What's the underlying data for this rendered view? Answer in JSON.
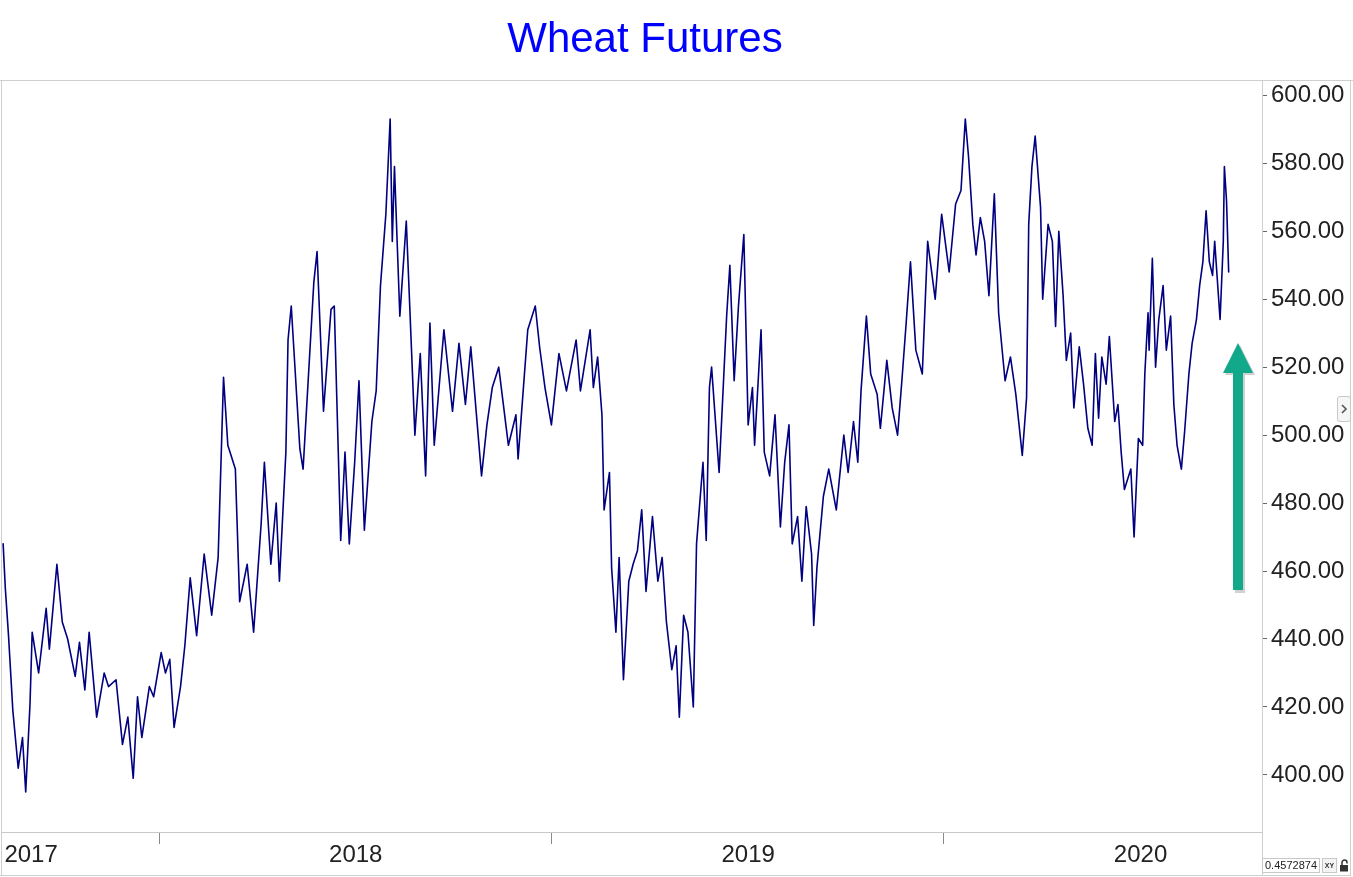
{
  "chart_data": {
    "type": "line",
    "title": "Wheat Futures",
    "annotations": [
      "0.4572874",
      "XY"
    ],
    "x": [
      "2017-08-09",
      "2017-08-11",
      "2017-08-14",
      "2017-08-18",
      "2017-08-23",
      "2017-08-27",
      "2017-08-30",
      "2017-09-03",
      "2017-09-05",
      "2017-09-11",
      "2017-09-18",
      "2017-09-21",
      "2017-09-28",
      "2017-10-03",
      "2017-10-08",
      "2017-10-15",
      "2017-10-19",
      "2017-10-24",
      "2017-10-28",
      "2017-11-04",
      "2017-11-11",
      "2017-11-15",
      "2017-11-22",
      "2017-11-28",
      "2017-12-03",
      "2017-12-08",
      "2017-12-12",
      "2017-12-16",
      "2017-12-23",
      "2017-12-27",
      "2018-01-03",
      "2018-01-07",
      "2018-01-11",
      "2018-01-15",
      "2018-01-21",
      "2018-01-25",
      "2018-01-30",
      "2018-02-05",
      "2018-02-12",
      "2018-02-19",
      "2018-02-25",
      "2018-03-02",
      "2018-03-06",
      "2018-03-13",
      "2018-03-17",
      "2018-03-24",
      "2018-03-30",
      "2018-04-06",
      "2018-04-09",
      "2018-04-15",
      "2018-04-20",
      "2018-04-23",
      "2018-04-29",
      "2018-05-01",
      "2018-05-04",
      "2018-05-12",
      "2018-05-15",
      "2018-05-25",
      "2018-05-28",
      "2018-06-03",
      "2018-06-10",
      "2018-06-13",
      "2018-06-19",
      "2018-06-23",
      "2018-06-27",
      "2018-07-02",
      "2018-07-06",
      "2018-07-11",
      "2018-07-18",
      "2018-07-22",
      "2018-07-26",
      "2018-07-31",
      "2018-08-04",
      "2018-08-06",
      "2018-08-08",
      "2018-08-13",
      "2018-08-19",
      "2018-08-24",
      "2018-08-27",
      "2018-09-01",
      "2018-09-06",
      "2018-09-10",
      "2018-09-14",
      "2018-09-23",
      "2018-10-01",
      "2018-10-07",
      "2018-10-13",
      "2018-10-18",
      "2018-10-28",
      "2018-11-02",
      "2018-11-07",
      "2018-11-13",
      "2018-11-22",
      "2018-11-29",
      "2018-12-01",
      "2018-12-10",
      "2018-12-17",
      "2018-12-21",
      "2018-12-26",
      "2019-01-01",
      "2019-01-08",
      "2019-01-15",
      "2019-01-24",
      "2019-01-28",
      "2019-02-06",
      "2019-02-09",
      "2019-02-13",
      "2019-02-17",
      "2019-02-19",
      "2019-02-24",
      "2019-02-26",
      "2019-03-02",
      "2019-03-05",
      "2019-03-09",
      "2019-03-14",
      "2019-03-18",
      "2019-03-22",
      "2019-03-26",
      "2019-03-30",
      "2019-04-05",
      "2019-04-10",
      "2019-04-14",
      "2019-04-18",
      "2019-04-23",
      "2019-04-27",
      "2019-04-30",
      "2019-05-04",
      "2019-05-08",
      "2019-05-13",
      "2019-05-16",
      "2019-05-22",
      "2019-05-25",
      "2019-05-28",
      "2019-05-30",
      "2019-06-06",
      "2019-06-13",
      "2019-06-16",
      "2019-06-20",
      "2019-06-24",
      "2019-06-29",
      "2019-07-03",
      "2019-07-07",
      "2019-07-09",
      "2019-07-15",
      "2019-07-18",
      "2019-07-23",
      "2019-07-28",
      "2019-08-02",
      "2019-08-06",
      "2019-08-10",
      "2019-08-13",
      "2019-08-18",
      "2019-08-22",
      "2019-08-26",
      "2019-08-31",
      "2019-09-02",
      "2019-09-05",
      "2019-09-11",
      "2019-09-16",
      "2019-09-23",
      "2019-09-30",
      "2019-10-04",
      "2019-10-09",
      "2019-10-13",
      "2019-10-16",
      "2019-10-21",
      "2019-10-25",
      "2019-10-31",
      "2019-11-03",
      "2019-11-09",
      "2019-11-14",
      "2019-11-19",
      "2019-11-23",
      "2019-11-27",
      "2019-12-01",
      "2019-12-06",
      "2019-12-12",
      "2019-12-17",
      "2019-12-24",
      "2019-12-30",
      "2020-01-06",
      "2020-01-12",
      "2020-01-17",
      "2020-01-21",
      "2020-01-24",
      "2020-01-28",
      "2020-01-31",
      "2020-02-04",
      "2020-02-08",
      "2020-02-12",
      "2020-02-17",
      "2020-02-21",
      "2020-02-27",
      "2020-03-03",
      "2020-03-08",
      "2020-03-14",
      "2020-03-18",
      "2020-03-20",
      "2020-03-23",
      "2020-03-26",
      "2020-03-31",
      "2020-04-02",
      "2020-04-07",
      "2020-04-11",
      "2020-04-14",
      "2020-04-17",
      "2020-04-21",
      "2020-04-24",
      "2020-04-28",
      "2020-05-01",
      "2020-05-06",
      "2020-05-10",
      "2020-05-14",
      "2020-05-18",
      "2020-05-21",
      "2020-05-24",
      "2020-05-27",
      "2020-05-31",
      "2020-06-03",
      "2020-06-08",
      "2020-06-11",
      "2020-06-14",
      "2020-06-17",
      "2020-06-23",
      "2020-06-26",
      "2020-06-30",
      "2020-07-04",
      "2020-07-06",
      "2020-07-09",
      "2020-07-10",
      "2020-07-13",
      "2020-07-16",
      "2020-07-19",
      "2020-07-23",
      "2020-07-26",
      "2020-07-30",
      "2020-08-02",
      "2020-08-05",
      "2020-08-09",
      "2020-08-12",
      "2020-08-16",
      "2020-08-19",
      "2020-08-23",
      "2020-08-26",
      "2020-08-29",
      "2020-09-01",
      "2020-09-04",
      "2020-09-07",
      "2020-09-09",
      "2020-09-14",
      "2020-09-17",
      "2020-09-18",
      "2020-09-20",
      "2020-09-22"
    ],
    "series": [
      {
        "color": "#000080",
        "values": [
          468,
          455,
          441,
          419,
          402,
          411,
          395,
          421,
          442,
          430,
          449,
          437,
          462,
          445,
          440,
          429,
          439,
          425,
          442,
          417,
          430,
          426,
          428,
          409,
          417,
          399,
          423,
          411,
          426,
          423,
          436,
          430,
          434,
          414,
          426,
          438,
          458,
          441,
          465,
          447,
          464,
          517,
          497,
          490,
          451,
          462,
          442,
          474,
          492,
          462,
          480,
          457,
          495,
          528,
          538,
          496,
          490,
          545,
          554,
          507,
          537,
          538,
          469,
          495,
          468,
          492,
          516,
          472,
          504,
          513,
          544,
          565,
          593,
          557,
          579,
          535,
          563,
          524,
          500,
          524,
          488,
          533,
          497,
          531,
          507,
          527,
          509,
          526,
          488,
          503,
          514,
          520,
          497,
          506,
          493,
          531,
          538,
          526,
          514,
          503,
          524,
          513,
          528,
          513,
          531,
          514,
          523,
          506,
          478,
          489,
          461,
          442,
          464,
          428,
          457,
          462,
          466,
          478,
          454,
          476,
          457,
          464,
          445,
          431,
          438,
          417,
          447,
          442,
          420,
          468,
          492,
          469,
          514,
          520,
          489,
          535,
          550,
          516,
          538,
          559,
          503,
          514,
          497,
          531,
          495,
          488,
          506,
          473,
          492,
          503,
          468,
          476,
          457,
          479,
          465,
          444,
          461,
          482,
          490,
          478,
          500,
          489,
          504,
          492,
          513,
          535,
          518,
          512,
          502,
          522,
          508,
          500,
          516,
          533,
          551,
          525,
          518,
          557,
          540,
          565,
          548,
          568,
          572,
          593,
          582,
          562,
          553,
          564,
          557,
          541,
          571,
          536,
          516,
          523,
          512,
          494,
          511,
          562,
          579,
          588,
          567,
          540,
          562,
          557,
          532,
          560,
          541,
          522,
          530,
          508,
          526,
          515,
          502,
          497,
          524,
          505,
          523,
          515,
          529,
          504,
          509,
          495,
          484,
          490,
          470,
          499,
          497,
          518,
          536,
          525,
          552,
          520,
          534,
          544,
          525,
          535,
          509,
          497,
          490,
          501,
          518,
          527,
          534,
          544,
          551,
          566,
          551,
          547,
          557,
          534,
          557,
          579,
          569,
          548
        ]
      }
    ],
    "xlim": [
      "2017-08-07",
      "2020-10-23"
    ],
    "xticks": [
      {
        "value": "2017-09-04",
        "label": "2017"
      },
      {
        "value": "2018-01-01",
        "label": null
      },
      {
        "value": "2018-07-03",
        "label": "2018"
      },
      {
        "value": "2019-01-01",
        "label": null
      },
      {
        "value": "2019-07-03",
        "label": "2019"
      },
      {
        "value": "2020-01-01",
        "label": null
      },
      {
        "value": "2020-07-02",
        "label": "2020"
      }
    ],
    "ylim": [
      383.2,
      604.5
    ],
    "yticks": [
      {
        "value": 400,
        "label": "400.00"
      },
      {
        "value": 420,
        "label": "420.00"
      },
      {
        "value": 440,
        "label": "440.00"
      },
      {
        "value": 460,
        "label": "460.00"
      },
      {
        "value": 480,
        "label": "480.00"
      },
      {
        "value": 500,
        "label": "500.00"
      },
      {
        "value": 520,
        "label": "520.00"
      },
      {
        "value": 540,
        "label": "540.00"
      },
      {
        "value": 560,
        "label": "560.00"
      },
      {
        "value": 580,
        "label": "580.00"
      },
      {
        "value": 600,
        "label": "600.00"
      }
    ],
    "marker": "none",
    "line_style": "solid"
  }
}
